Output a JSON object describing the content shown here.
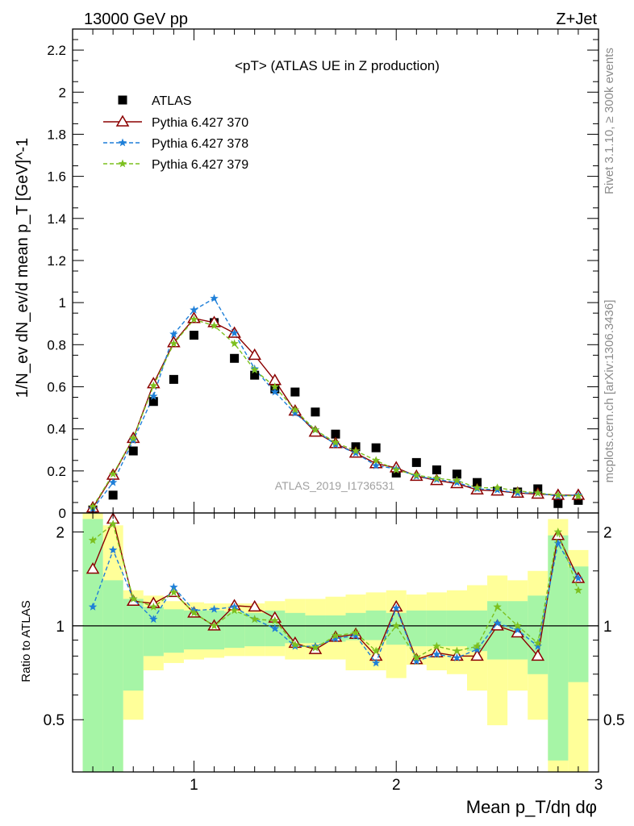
{
  "header": {
    "energy": "13000 GeV pp",
    "process": "Z+Jet",
    "rivet_note": "Rivet 3.1.10, ≥ 300k events",
    "mcplots_note": "mcplots.cern.ch [arXiv:1306.3436]",
    "analysis_id": "ATLAS_2019_I1736531"
  },
  "colors": {
    "data": "#000000",
    "p370": "#8b0000",
    "p378": "#1e7fd8",
    "p379": "#7cc01f",
    "band_inner": "#a6f5a6",
    "band_outer": "#ffff99"
  },
  "chart_data": [
    {
      "type": "scatter",
      "panel": "main",
      "title": "<pT> (ATLAS UE in Z production)",
      "ylabel": "1/N_ev dN_ev/d mean p_T [GeV]^-1",
      "xlim": [
        0.4,
        3.0
      ],
      "ylim": [
        0,
        2.3
      ],
      "yticks": [
        0,
        0.2,
        0.4,
        0.6,
        0.8,
        1,
        1.2,
        1.4,
        1.6,
        1.8,
        2,
        2.2
      ],
      "ytick_labels": [
        "0",
        "0.2",
        "0.4",
        "0.6",
        "0.8",
        "1",
        "1.2",
        "1.4",
        "1.6",
        "1.8",
        "2",
        "2.2"
      ],
      "x": [
        0.5,
        0.6,
        0.7,
        0.8,
        0.9,
        1.0,
        1.1,
        1.2,
        1.3,
        1.4,
        1.5,
        1.6,
        1.7,
        1.8,
        1.9,
        2.0,
        2.1,
        2.2,
        2.3,
        2.4,
        2.5,
        2.6,
        2.7,
        2.8,
        2.9
      ],
      "legend_position": "top-left",
      "series": [
        {
          "name": "ATLAS",
          "marker": "square",
          "values": [
            0.015,
            0.085,
            0.295,
            0.53,
            0.635,
            0.845,
            0.905,
            0.735,
            0.655,
            0.59,
            0.575,
            0.48,
            0.375,
            0.315,
            0.31,
            0.19,
            0.24,
            0.205,
            0.185,
            0.145,
            0.105,
            0.1,
            0.115,
            0.045,
            0.06
          ]
        },
        {
          "name": "Pythia 6.427 370",
          "marker": "triangle",
          "line": "solid",
          "values": [
            0.025,
            0.18,
            0.355,
            0.615,
            0.81,
            0.925,
            0.905,
            0.855,
            0.75,
            0.63,
            0.485,
            0.385,
            0.33,
            0.285,
            0.235,
            0.215,
            0.175,
            0.155,
            0.14,
            0.11,
            0.105,
            0.095,
            0.09,
            0.085,
            0.085
          ]
        },
        {
          "name": "Pythia 6.427 378",
          "marker": "star",
          "line": "dashed",
          "values": [
            0.02,
            0.145,
            0.345,
            0.555,
            0.85,
            0.965,
            1.02,
            0.855,
            0.685,
            0.575,
            0.475,
            0.395,
            0.325,
            0.285,
            0.225,
            0.21,
            0.175,
            0.16,
            0.145,
            0.115,
            0.11,
            0.095,
            0.095,
            0.08,
            0.085
          ]
        },
        {
          "name": "Pythia 6.427 379",
          "marker": "star",
          "line": "dashed",
          "values": [
            0.03,
            0.185,
            0.355,
            0.605,
            0.805,
            0.92,
            0.89,
            0.805,
            0.68,
            0.6,
            0.49,
            0.395,
            0.335,
            0.295,
            0.25,
            0.205,
            0.18,
            0.165,
            0.155,
            0.12,
            0.12,
            0.105,
            0.095,
            0.085,
            0.08
          ]
        }
      ]
    },
    {
      "type": "line",
      "panel": "ratio",
      "ylabel": "Ratio to ATLAS",
      "xlabel": "Mean p_T/dη dφ",
      "xlim": [
        0.4,
        3.0
      ],
      "ylim": [
        0.34,
        2.3
      ],
      "log_scale_y": true,
      "yticks": [
        0.5,
        1,
        2
      ],
      "ytick_labels": [
        "0.5",
        "1",
        "2"
      ],
      "xticks": [
        1,
        2,
        3
      ],
      "xtick_labels": [
        "1",
        "2",
        "3"
      ],
      "x": [
        0.5,
        0.6,
        0.7,
        0.8,
        0.9,
        1.0,
        1.1,
        1.2,
        1.3,
        1.4,
        1.5,
        1.6,
        1.7,
        1.8,
        1.9,
        2.0,
        2.1,
        2.2,
        2.3,
        2.4,
        2.5,
        2.6,
        2.7,
        2.8,
        2.9
      ],
      "bands": {
        "inner": [
          [
            0.34,
            2.2
          ],
          [
            0.34,
            1.4
          ],
          [
            0.62,
            1.22
          ],
          [
            0.8,
            1.15
          ],
          [
            0.82,
            1.13
          ],
          [
            0.84,
            1.12
          ],
          [
            0.84,
            1.12
          ],
          [
            0.85,
            1.11
          ],
          [
            0.86,
            1.1
          ],
          [
            0.86,
            1.12
          ],
          [
            0.88,
            1.1
          ],
          [
            0.88,
            1.08
          ],
          [
            0.89,
            1.08
          ],
          [
            0.9,
            1.1
          ],
          [
            0.9,
            1.12
          ],
          [
            0.87,
            1.1
          ],
          [
            0.86,
            1.12
          ],
          [
            0.86,
            1.12
          ],
          [
            0.86,
            1.12
          ],
          [
            0.83,
            1.12
          ],
          [
            0.78,
            1.2
          ],
          [
            0.78,
            1.2
          ],
          [
            0.7,
            1.25
          ],
          [
            0.37,
            1.95
          ],
          [
            0.66,
            1.55
          ]
        ],
        "outer": [
          [
            0.34,
            2.3
          ],
          [
            0.34,
            2.1
          ],
          [
            0.5,
            1.3
          ],
          [
            0.72,
            1.25
          ],
          [
            0.76,
            1.2
          ],
          [
            0.78,
            1.19
          ],
          [
            0.79,
            1.18
          ],
          [
            0.8,
            1.18
          ],
          [
            0.8,
            1.18
          ],
          [
            0.8,
            1.2
          ],
          [
            0.78,
            1.22
          ],
          [
            0.78,
            1.22
          ],
          [
            0.78,
            1.24
          ],
          [
            0.72,
            1.26
          ],
          [
            0.72,
            1.28
          ],
          [
            0.68,
            1.3
          ],
          [
            0.75,
            1.26
          ],
          [
            0.72,
            1.28
          ],
          [
            0.7,
            1.3
          ],
          [
            0.62,
            1.35
          ],
          [
            0.48,
            1.45
          ],
          [
            0.62,
            1.4
          ],
          [
            0.5,
            1.5
          ],
          [
            0.34,
            2.2
          ],
          [
            0.34,
            1.75
          ]
        ]
      },
      "series": [
        {
          "name": "Pythia 6.427 370",
          "values": [
            1.52,
            2.2,
            1.2,
            1.18,
            1.28,
            1.1,
            1.0,
            1.16,
            1.15,
            1.06,
            0.88,
            0.84,
            0.92,
            0.94,
            0.8,
            1.15,
            0.78,
            0.82,
            0.8,
            0.8,
            1.0,
            0.95,
            0.8,
            1.95,
            1.42
          ]
        },
        {
          "name": "Pythia 6.427 378",
          "values": [
            1.15,
            1.75,
            1.22,
            1.05,
            1.33,
            1.12,
            1.13,
            1.15,
            1.05,
            0.98,
            0.86,
            0.86,
            0.91,
            0.93,
            0.76,
            1.14,
            0.77,
            0.81,
            0.79,
            0.84,
            1.02,
            0.97,
            0.86,
            1.84,
            1.42
          ]
        },
        {
          "name": "Pythia 6.427 379",
          "values": [
            1.88,
            2.12,
            1.22,
            1.15,
            1.28,
            1.1,
            1.0,
            1.12,
            1.05,
            1.04,
            0.87,
            0.85,
            0.93,
            0.95,
            0.83,
            1.0,
            0.79,
            0.86,
            0.83,
            0.86,
            1.15,
            1.0,
            0.88,
            2.0,
            1.3
          ]
        }
      ]
    }
  ]
}
